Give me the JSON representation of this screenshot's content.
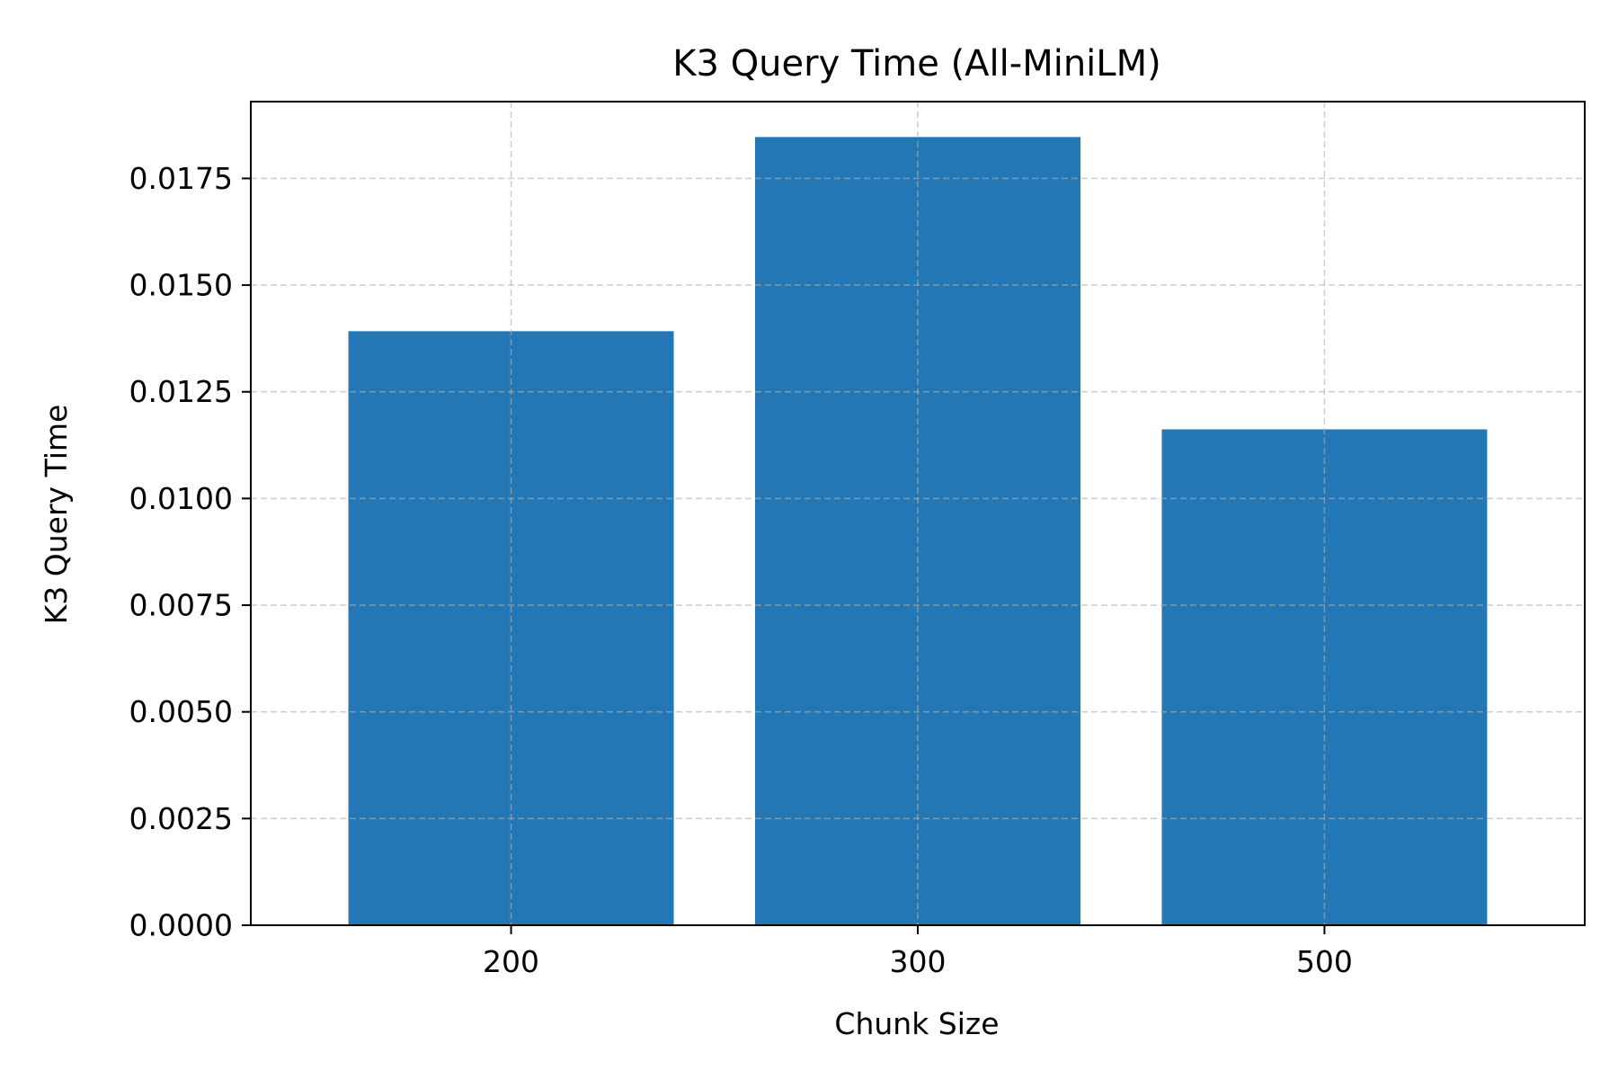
{
  "chart_data": {
    "type": "bar",
    "title": "K3 Query Time (All-MiniLM)",
    "xlabel": "Chunk Size",
    "ylabel": "K3 Query Time",
    "categories": [
      "200",
      "300",
      "500"
    ],
    "values": [
      0.01392,
      0.01847,
      0.01162
    ],
    "ylim": [
      0,
      0.0193
    ],
    "yticks": [
      0,
      0.0025,
      0.005,
      0.0075,
      0.01,
      0.0125,
      0.015,
      0.0175
    ],
    "ytick_labels": [
      "0.0000",
      "0.0025",
      "0.0050",
      "0.0075",
      "0.0100",
      "0.0125",
      "0.0150",
      "0.0175"
    ],
    "grid": true,
    "grid_style": "dashed",
    "bar_color": "#2277b4",
    "legend": "none"
  }
}
